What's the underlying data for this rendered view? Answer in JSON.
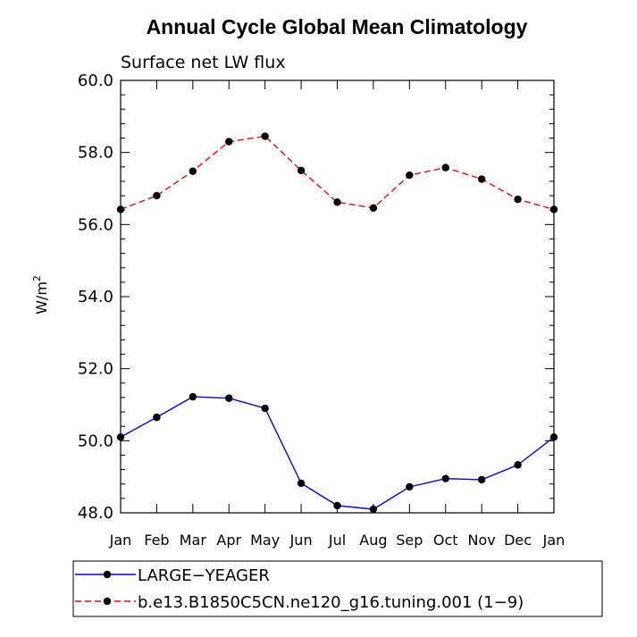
{
  "chart_data": {
    "type": "line",
    "title": "Annual Cycle Global Mean Climatology",
    "subtitle": "Surface net LW flux",
    "ylabel": "W/m",
    "ylabel_sup": "2",
    "xlabel": "",
    "categories": [
      "Jan",
      "Feb",
      "Mar",
      "Apr",
      "May",
      "Jun",
      "Jul",
      "Aug",
      "Sep",
      "Oct",
      "Nov",
      "Dec",
      "Jan"
    ],
    "ylim": [
      48.0,
      60.0
    ],
    "yticks": [
      "48.0",
      "50.0",
      "52.0",
      "54.0",
      "56.0",
      "58.0",
      "60.0"
    ],
    "grid": false,
    "legend_position": "bottom",
    "series": [
      {
        "name": "LARGE−YEAGER",
        "color": "#0000ff",
        "style": "solid",
        "marker": "dot",
        "values": [
          50.1,
          50.65,
          51.22,
          51.18,
          50.9,
          48.82,
          48.2,
          48.1,
          48.72,
          48.95,
          48.92,
          49.33,
          50.1
        ]
      },
      {
        "name": "b.e13.B1850C5CN.ne120_g16.tuning.001 (1−9)",
        "color": "#ff0000",
        "style": "dashed",
        "marker": "dot",
        "values": [
          56.42,
          56.8,
          57.48,
          58.3,
          58.45,
          57.5,
          56.62,
          56.46,
          57.37,
          57.58,
          57.26,
          56.7,
          56.42
        ]
      }
    ]
  }
}
